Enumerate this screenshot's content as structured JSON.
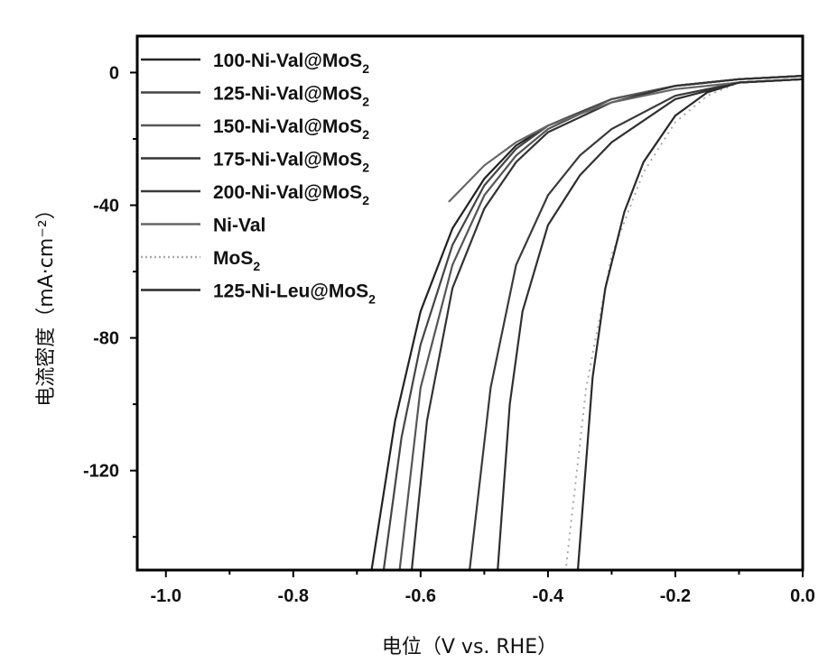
{
  "chart_data": {
    "type": "line",
    "title": "",
    "xlabel": "电位（V vs. RHE）",
    "ylabel": "电流密度（mA·cm⁻²）",
    "xlim": [
      -1.045,
      0.0
    ],
    "ylim": [
      -150,
      11
    ],
    "xticks": [
      -1.0,
      -0.8,
      -0.6,
      -0.4,
      -0.2,
      0.0
    ],
    "xtick_labels": [
      "-1.0",
      "-0.8",
      "-0.6",
      "-0.4",
      "-0.2",
      "0.0"
    ],
    "yticks": [
      0,
      -40,
      -80,
      -120
    ],
    "ytick_labels": [
      "0",
      "-40",
      "-80",
      "-120"
    ],
    "grid": false,
    "legend_position": "top-left",
    "series": [
      {
        "name": "100-Ni-Val@MoS₂",
        "label_main": "100-Ni-Val@MoS",
        "label_sub": "2",
        "color": "#222222",
        "points": [
          [
            0,
            -1
          ],
          [
            -0.1,
            -2
          ],
          [
            -0.2,
            -4
          ],
          [
            -0.3,
            -8
          ],
          [
            -0.4,
            -16
          ],
          [
            -0.45,
            -22
          ],
          [
            -0.5,
            -32
          ],
          [
            -0.55,
            -47
          ],
          [
            -0.6,
            -72
          ],
          [
            -0.64,
            -105
          ],
          [
            -0.677,
            -150
          ]
        ]
      },
      {
        "name": "125-Ni-Val@MoS₂",
        "label_main": "125-Ni-Val@MoS",
        "label_sub": "2",
        "color": "#444444",
        "points": [
          [
            0,
            -1
          ],
          [
            -0.1,
            -2
          ],
          [
            -0.2,
            -4
          ],
          [
            -0.3,
            -8
          ],
          [
            -0.4,
            -16
          ],
          [
            -0.45,
            -23
          ],
          [
            -0.5,
            -34
          ],
          [
            -0.55,
            -52
          ],
          [
            -0.6,
            -82
          ],
          [
            -0.63,
            -110
          ],
          [
            -0.658,
            -150
          ]
        ]
      },
      {
        "name": "150-Ni-Val@MoS₂",
        "label_main": "150-Ni-Val@MoS",
        "label_sub": "2",
        "color": "#555555",
        "points": [
          [
            0,
            -1
          ],
          [
            -0.1,
            -2
          ],
          [
            -0.2,
            -4
          ],
          [
            -0.3,
            -8
          ],
          [
            -0.4,
            -17
          ],
          [
            -0.45,
            -25
          ],
          [
            -0.5,
            -37
          ],
          [
            -0.55,
            -58
          ],
          [
            -0.6,
            -95
          ],
          [
            -0.633,
            -150
          ]
        ]
      },
      {
        "name": "175-Ni-Val@MoS₂",
        "label_main": "175-Ni-Val@MoS",
        "label_sub": "2",
        "color": "#333333",
        "points": [
          [
            0,
            -1
          ],
          [
            -0.1,
            -2
          ],
          [
            -0.2,
            -4
          ],
          [
            -0.3,
            -9
          ],
          [
            -0.4,
            -18
          ],
          [
            -0.45,
            -27
          ],
          [
            -0.5,
            -41
          ],
          [
            -0.55,
            -65
          ],
          [
            -0.59,
            -105
          ],
          [
            -0.614,
            -150
          ]
        ]
      },
      {
        "name": "200-Ni-Val@MoS₂",
        "label_main": "200-Ni-Val@MoS",
        "label_sub": "2",
        "color": "#3a3a3a",
        "points": [
          [
            0,
            -2
          ],
          [
            -0.1,
            -3
          ],
          [
            -0.2,
            -7
          ],
          [
            -0.3,
            -17
          ],
          [
            -0.35,
            -25
          ],
          [
            -0.4,
            -37
          ],
          [
            -0.45,
            -58
          ],
          [
            -0.49,
            -95
          ],
          [
            -0.523,
            -150
          ]
        ]
      },
      {
        "name": "Ni-Val",
        "label_main": "Ni-Val",
        "label_sub": "",
        "color": "#666666",
        "points": [
          [
            0,
            -2
          ],
          [
            -0.1,
            -3
          ],
          [
            -0.2,
            -5
          ],
          [
            -0.3,
            -9
          ],
          [
            -0.4,
            -16
          ],
          [
            -0.45,
            -21
          ],
          [
            -0.5,
            -28
          ],
          [
            -0.556,
            -39
          ]
        ]
      },
      {
        "name": "MoS₂",
        "label_main": "MoS",
        "label_sub": "2",
        "color": "#aaaaaa",
        "dashed": true,
        "points": [
          [
            0,
            -2
          ],
          [
            -0.1,
            -3
          ],
          [
            -0.15,
            -7
          ],
          [
            -0.2,
            -15
          ],
          [
            -0.25,
            -30
          ],
          [
            -0.3,
            -55
          ],
          [
            -0.34,
            -95
          ],
          [
            -0.372,
            -150
          ]
        ]
      },
      {
        "name": "125-Ni-Leu@MoS₂",
        "label_main": "125-Ni-Leu@MoS",
        "label_sub": "2",
        "color": "#2a2a2a",
        "points": [
          [
            0,
            -2
          ],
          [
            -0.1,
            -3
          ],
          [
            -0.15,
            -6
          ],
          [
            -0.2,
            -13
          ],
          [
            -0.25,
            -27
          ],
          [
            -0.28,
            -42
          ],
          [
            -0.31,
            -65
          ],
          [
            -0.33,
            -92
          ],
          [
            -0.353,
            -150
          ]
        ]
      },
      {
        "name": "curve-479",
        "label_main": "",
        "label_sub": "",
        "color": "#2f2f2f",
        "unlabeled": true,
        "points": [
          [
            0,
            -2
          ],
          [
            -0.1,
            -3
          ],
          [
            -0.2,
            -8
          ],
          [
            -0.3,
            -21
          ],
          [
            -0.35,
            -31
          ],
          [
            -0.4,
            -46
          ],
          [
            -0.44,
            -72
          ],
          [
            -0.46,
            -100
          ],
          [
            -0.479,
            -150
          ]
        ]
      }
    ]
  }
}
